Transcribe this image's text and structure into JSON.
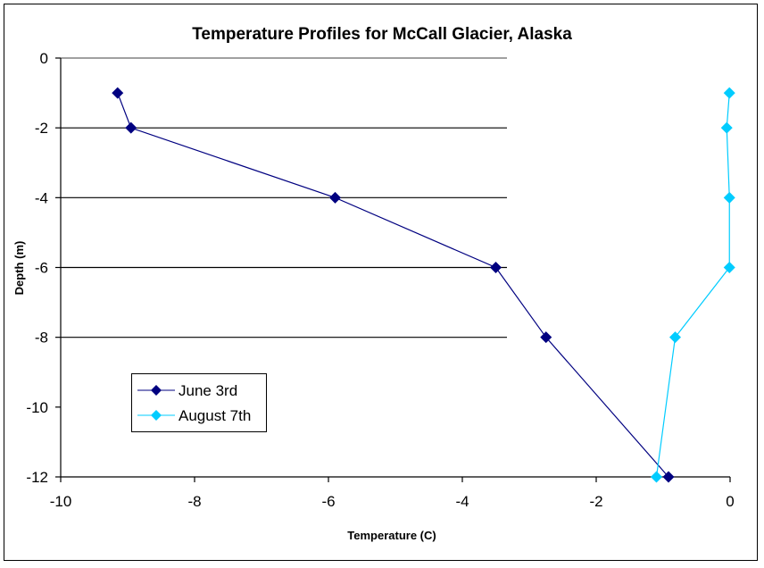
{
  "chart_data": {
    "type": "line",
    "title": "Temperature Profiles for McCall Glacier, Alaska",
    "xlabel": "Temperature (C)",
    "ylabel": "Depth (m)",
    "xlim": [
      -10,
      0
    ],
    "ylim": [
      -12,
      0
    ],
    "xticks": [
      "-10",
      "-8",
      "-6",
      "-4",
      "-2",
      "0"
    ],
    "yticks": [
      "0",
      "-2",
      "-4",
      "-6",
      "-8",
      "-10",
      "-12"
    ],
    "gridlines_y": [
      0,
      -2,
      -4,
      -6,
      -8
    ],
    "legend_position": "lower-left",
    "series": [
      {
        "name": "June 3rd",
        "color": "#000080",
        "marker": "diamond",
        "points": [
          [
            -9.15,
            -1
          ],
          [
            -8.95,
            -2
          ],
          [
            -5.9,
            -4
          ],
          [
            -3.5,
            -6
          ],
          [
            -2.75,
            -8
          ],
          [
            -0.92,
            -12
          ]
        ]
      },
      {
        "name": "August 7th",
        "color": "#00ccff",
        "marker": "diamond",
        "points": [
          [
            -0.01,
            -1
          ],
          [
            -0.05,
            -2
          ],
          [
            -0.01,
            -4
          ],
          [
            -0.01,
            -6
          ],
          [
            -0.82,
            -8
          ],
          [
            -1.1,
            -12
          ]
        ]
      }
    ]
  }
}
